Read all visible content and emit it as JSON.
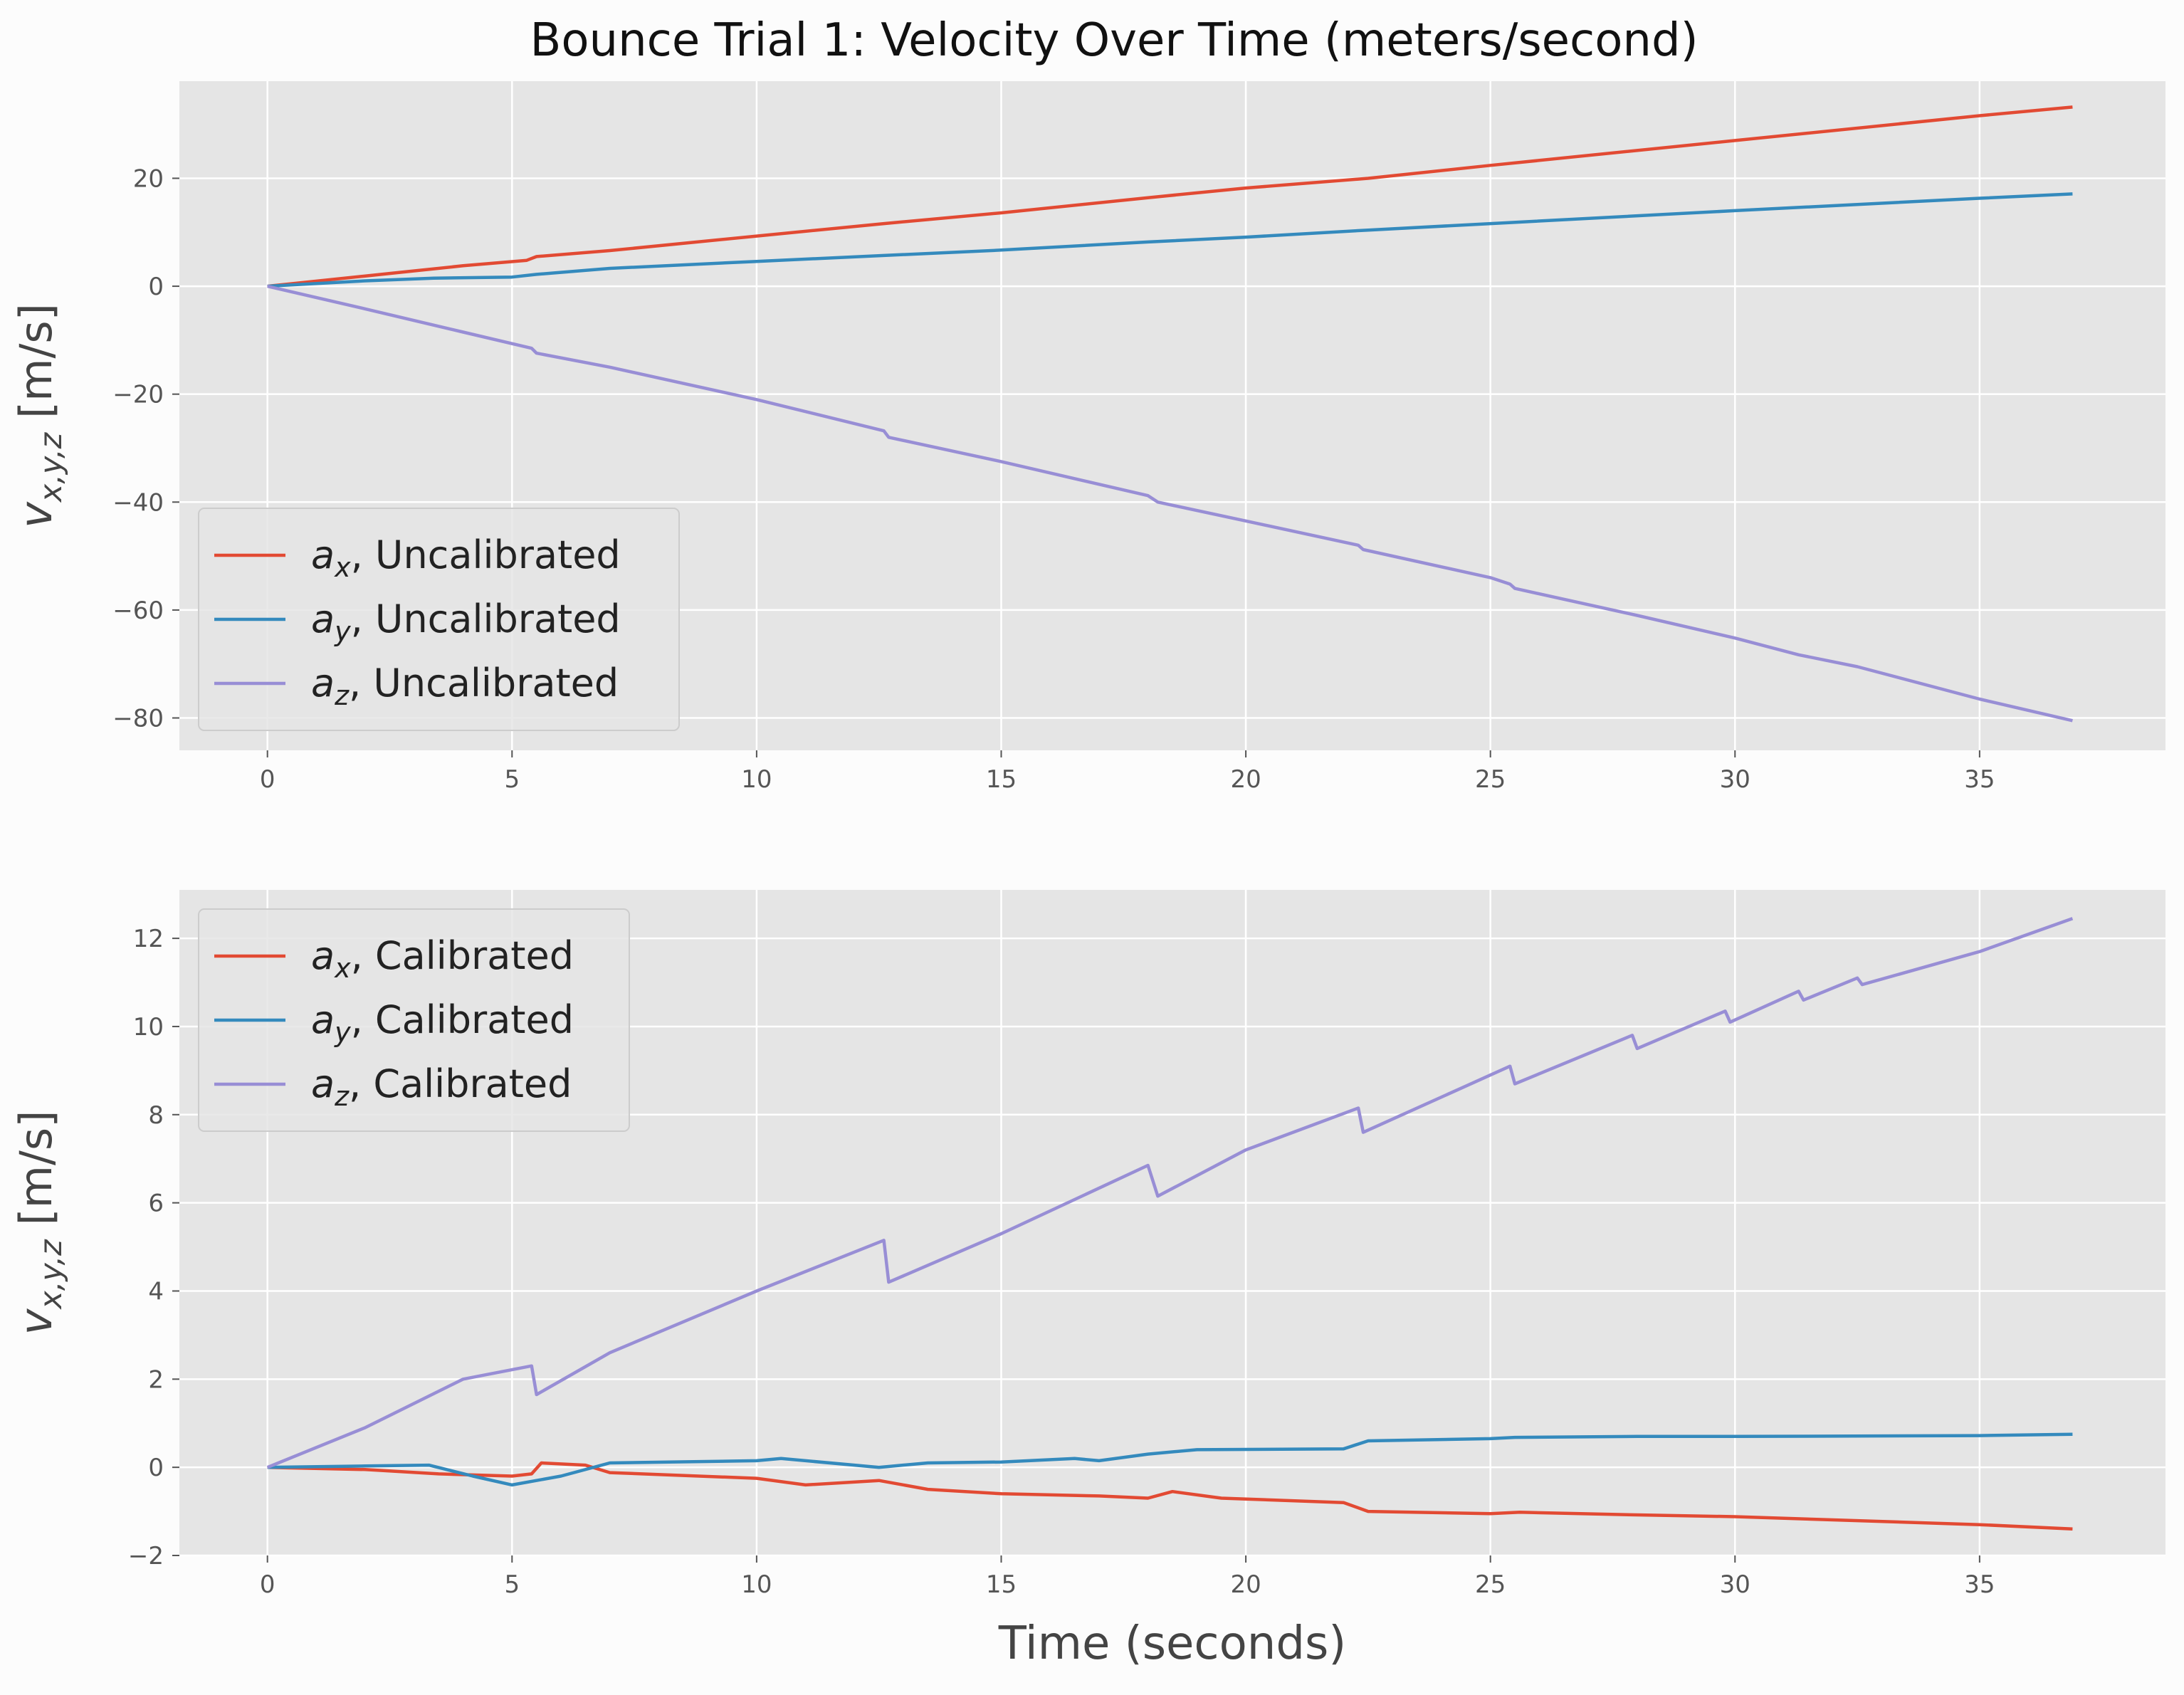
{
  "figure_title": "Bounce Trial 1: Velocity Over Time (meters/second)",
  "colors": {
    "figure_bg": "#fcfcfc",
    "axes_bg": "#e5e5e5",
    "grid": "#ffffff",
    "tick_text": "#555555",
    "red": "#e24a33",
    "blue": "#348abd",
    "purple": "#988ed5"
  },
  "chart_data": [
    {
      "type": "line",
      "title": "Bounce Trial 1: Velocity Over Time (meters/second)",
      "xlabel": "",
      "ylabel": "v_{x,y,z} [m/s]",
      "xlim": [
        -1.8,
        38.8
      ],
      "ylim": [
        -86,
        38
      ],
      "xticks": [
        0,
        5,
        10,
        15,
        20,
        25,
        30,
        35
      ],
      "yticks": [
        -80,
        -60,
        -40,
        -20,
        0,
        20
      ],
      "grid": true,
      "legend_position": "lower-left",
      "series": [
        {
          "name": "a_x, Uncalibrated",
          "color": "#e24a33",
          "x": [
            0,
            2,
            4,
            5.3,
            5.5,
            7,
            10,
            12.6,
            15,
            18,
            20,
            22.5,
            25,
            30,
            35,
            36.9
          ],
          "y": [
            0,
            1.9,
            3.8,
            4.8,
            5.5,
            6.6,
            9.3,
            11.6,
            13.6,
            16.4,
            18.2,
            20.0,
            22.4,
            27.0,
            31.6,
            33.2
          ]
        },
        {
          "name": "a_y, Uncalibrated",
          "color": "#348abd",
          "x": [
            0,
            2,
            3.4,
            5,
            5.5,
            7,
            10,
            12.6,
            15,
            18,
            20,
            22.5,
            25,
            30,
            35,
            36.9
          ],
          "y": [
            0,
            1.0,
            1.5,
            1.7,
            2.2,
            3.3,
            4.6,
            5.7,
            6.7,
            8.2,
            9.1,
            10.4,
            11.6,
            14.0,
            16.3,
            17.1
          ]
        },
        {
          "name": "a_z, Uncalibrated",
          "color": "#988ed5",
          "x": [
            0,
            2,
            4,
            5.4,
            5.5,
            7,
            10,
            12.6,
            12.7,
            15,
            18,
            18.2,
            20,
            22.3,
            22.4,
            25,
            25.4,
            25.5,
            28,
            30,
            31.3,
            32.5,
            35,
            36.9
          ],
          "y": [
            0,
            -4.2,
            -8.5,
            -11.5,
            -12.4,
            -15.0,
            -21.0,
            -26.8,
            -28.0,
            -32.5,
            -38.8,
            -40.0,
            -43.5,
            -48.0,
            -48.8,
            -54.0,
            -55.2,
            -56.0,
            -61.0,
            -65.2,
            -68.3,
            -70.5,
            -76.5,
            -80.5
          ]
        }
      ]
    },
    {
      "type": "line",
      "title": "",
      "xlabel": "Time (seconds)",
      "ylabel": "v_{x,y,z} [m/s]",
      "xlim": [
        -1.8,
        38.8
      ],
      "ylim": [
        -2.0,
        13.1
      ],
      "xticks": [
        0,
        5,
        10,
        15,
        20,
        25,
        30,
        35
      ],
      "yticks": [
        -2,
        0,
        2,
        4,
        6,
        8,
        10,
        12
      ],
      "grid": true,
      "legend_position": "upper-left",
      "series": [
        {
          "name": "a_x, Calibrated",
          "color": "#e24a33",
          "x": [
            0,
            2,
            3.5,
            5,
            5.4,
            5.6,
            6.5,
            7,
            10,
            11,
            12.5,
            13.5,
            15,
            17,
            18,
            18.5,
            19.5,
            22,
            22.5,
            25,
            25.6,
            28,
            30,
            35,
            36.9
          ],
          "y": [
            0,
            -0.05,
            -0.15,
            -0.2,
            -0.15,
            0.1,
            0.05,
            -0.12,
            -0.25,
            -0.4,
            -0.3,
            -0.5,
            -0.6,
            -0.65,
            -0.7,
            -0.55,
            -0.7,
            -0.8,
            -1.0,
            -1.05,
            -1.02,
            -1.08,
            -1.12,
            -1.3,
            -1.4
          ]
        },
        {
          "name": "a_y, Calibrated",
          "color": "#348abd",
          "x": [
            0,
            2,
            3.3,
            4.2,
            5,
            6,
            7,
            10,
            10.5,
            12.5,
            13.5,
            15,
            16.5,
            17,
            18,
            19,
            22,
            22.5,
            25,
            25.5,
            28,
            30,
            35,
            36.9
          ],
          "y": [
            0,
            0.03,
            0.05,
            -0.2,
            -0.4,
            -0.2,
            0.1,
            0.15,
            0.2,
            0.0,
            0.1,
            0.12,
            0.2,
            0.15,
            0.3,
            0.4,
            0.42,
            0.6,
            0.65,
            0.68,
            0.7,
            0.7,
            0.72,
            0.75
          ]
        },
        {
          "name": "a_z, Calibrated",
          "color": "#988ed5",
          "x": [
            0,
            2,
            4,
            5.4,
            5.5,
            7,
            10,
            12.6,
            12.7,
            15,
            18,
            18.2,
            20,
            22.3,
            22.4,
            25,
            25.4,
            25.5,
            27.9,
            28.0,
            29.8,
            29.9,
            31.3,
            31.4,
            32.5,
            32.6,
            35,
            36.9
          ],
          "y": [
            0,
            0.9,
            2.0,
            2.3,
            1.65,
            2.6,
            4.0,
            5.15,
            4.2,
            5.3,
            6.85,
            6.15,
            7.2,
            8.15,
            7.6,
            8.9,
            9.1,
            8.7,
            9.8,
            9.5,
            10.35,
            10.1,
            10.8,
            10.6,
            11.1,
            10.95,
            11.7,
            12.45
          ]
        }
      ]
    }
  ]
}
